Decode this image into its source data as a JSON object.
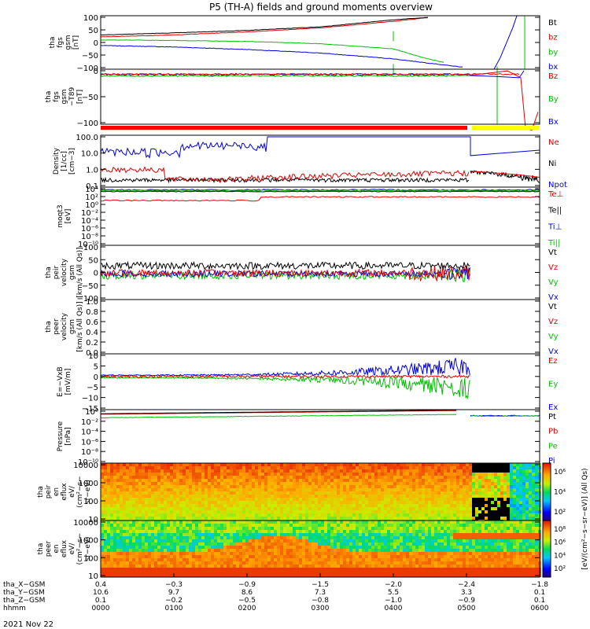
{
  "title": "P5 (TH-A) fields and ground moments overview",
  "date": "2021 Nov 22",
  "colors": {
    "black": "#000000",
    "red": "#e00000",
    "green": "#00c000",
    "blue": "#0000e0",
    "yellow": "#ffff00",
    "bar_red": "#ff0000"
  },
  "panels": [
    {
      "id": "fgs",
      "ylabel": [
        "tha",
        "fgs",
        "gsm",
        "[nT]"
      ],
      "ticks": [
        "100",
        "50",
        "0",
        "−50",
        "−100"
      ],
      "legend": [
        {
          "text": "Bt",
          "color": "#000000"
        },
        {
          "text": "bz",
          "color": "#e00000"
        },
        {
          "text": "by",
          "color": "#00c000"
        },
        {
          "text": "bx",
          "color": "#0000e0"
        }
      ]
    },
    {
      "id": "fgs_t89",
      "ylabel": [
        "tha",
        "fgs",
        "gsm",
        "−T89",
        "[nT]"
      ],
      "ticks": [
        "0",
        "−50",
        "−100"
      ],
      "legend": [
        {
          "text": "Bz",
          "color": "#e00000"
        },
        {
          "text": "By",
          "color": "#00c000"
        },
        {
          "text": "Bx",
          "color": "#0000e0"
        }
      ]
    },
    {
      "id": "density",
      "ylabel": [
        "Density",
        "[1/cc]",
        "[cm−3]"
      ],
      "ticks": [
        "100.0",
        "10.0",
        "1.0",
        "0.1"
      ],
      "legend": [
        {
          "text": "Ne",
          "color": "#e00000"
        },
        {
          "text": "Ni",
          "color": "#000000"
        },
        {
          "text": "Npot",
          "color": "#0000e0"
        }
      ]
    },
    {
      "id": "temp",
      "ylabel": [
        "moqt3",
        "[eV]"
      ],
      "ticks": [
        "10⁴",
        "10²",
        "10⁰",
        "10⁻²",
        "10⁻⁴",
        "10⁻⁶",
        "10⁻⁸",
        "10⁻¹⁰"
      ],
      "legend": [
        {
          "text": "Te⊥",
          "color": "#e00000"
        },
        {
          "text": "Te||",
          "color": "#000000"
        },
        {
          "text": "Ti⊥",
          "color": "#0000e0"
        },
        {
          "text": "Ti||",
          "color": "#00c000"
        }
      ]
    },
    {
      "id": "peir_vel",
      "ylabel": [
        "tha",
        "peir",
        "velocity",
        "gsm",
        "[km/s (All Qs)]"
      ],
      "ticks": [
        "100",
        "50",
        "0",
        "−50",
        "−100"
      ],
      "legend": [
        {
          "text": "Vt",
          "color": "#000000"
        },
        {
          "text": "Vz",
          "color": "#e00000"
        },
        {
          "text": "Vy",
          "color": "#00c000"
        },
        {
          "text": "Vx",
          "color": "#0000e0"
        }
      ]
    },
    {
      "id": "peer_vel",
      "ylabel": [
        "tha",
        "peer",
        "velocity",
        "gsm",
        "[km/s (All Qs)]"
      ],
      "ticks": [
        "1.0",
        "0.8",
        "0.6",
        "0.4",
        "0.2",
        "0.0"
      ],
      "legend": [
        {
          "text": "Vt",
          "color": "#000000"
        },
        {
          "text": "Vz",
          "color": "#e00000"
        },
        {
          "text": "Vy",
          "color": "#00c000"
        },
        {
          "text": "Vx",
          "color": "#0000e0"
        }
      ]
    },
    {
      "id": "efield",
      "ylabel": [
        "E=−VxB",
        "[mV/m]"
      ],
      "ticks": [
        "10",
        "5",
        "0",
        "−5",
        "−10",
        "−15"
      ],
      "legend": [
        {
          "text": "Ez",
          "color": "#e00000"
        },
        {
          "text": "Ey",
          "color": "#00c000"
        },
        {
          "text": "Ex",
          "color": "#0000e0"
        }
      ]
    },
    {
      "id": "pressure",
      "ylabel": [
        "Pressure",
        "[nPa]"
      ],
      "ticks": [
        "10⁰",
        "10⁻²",
        "10⁻⁴",
        "10⁻⁶",
        "10⁻⁸",
        "10⁻¹⁰"
      ],
      "legend": [
        {
          "text": "Pt",
          "color": "#000000"
        },
        {
          "text": "Pb",
          "color": "#e00000"
        },
        {
          "text": "Pe",
          "color": "#00c000"
        },
        {
          "text": "Pi",
          "color": "#0000e0"
        }
      ]
    },
    {
      "id": "peir_spec",
      "ylabel": [
        "tha",
        "peir",
        "en",
        "eflux",
        "eV/",
        "(cm²−s−",
        "sr−eV)"
      ],
      "ticks": [
        "10000",
        "1000",
        "100",
        "10"
      ],
      "legend": []
    },
    {
      "id": "peer_spec",
      "ylabel": [
        "tha",
        "peer",
        "en",
        "eflux",
        "eV/",
        "(cm²−s−",
        "sr−eV)"
      ],
      "ticks": [
        "10000",
        "1000",
        "100",
        "10"
      ],
      "legend": []
    }
  ],
  "colorbar": {
    "label": "[eV/(cm²−s−sr−eV)] (All Qs)",
    "ticks_top": [
      "10⁶",
      "10⁴",
      "10²"
    ],
    "ticks_bottom": [
      "10⁸",
      "10⁶",
      "10⁴",
      "10²"
    ]
  },
  "xaxis": {
    "row_labels": [
      "tha_X−GSM",
      "tha_Y−GSM",
      "tha_Z−GSM",
      "hhmm"
    ],
    "columns": [
      {
        "x": "0.4",
        "y": "10.6",
        "z": "0.1",
        "t": "0000"
      },
      {
        "x": "−0.3",
        "y": "9.7",
        "z": "−0.2",
        "t": "0100"
      },
      {
        "x": "−0.9",
        "y": "8.6",
        "z": "−0.5",
        "t": "0200"
      },
      {
        "x": "−1.5",
        "y": "7.3",
        "z": "−0.8",
        "t": "0300"
      },
      {
        "x": "−2.0",
        "y": "5.5",
        "z": "−1.0",
        "t": "0400"
      },
      {
        "x": "−2.4",
        "y": "3.3",
        "z": "−0.9",
        "t": "0500"
      },
      {
        "x": "−1.8",
        "y": "0.1",
        "z": "0.1",
        "t": "0600"
      }
    ]
  },
  "chart_data": {
    "type": "line",
    "title": "P5 (TH-A) fields and ground moments overview",
    "x_unit": "hhmm",
    "x_range": [
      "0000",
      "0600"
    ],
    "series_approx": {
      "Bt": [
        {
          "t": "0000",
          "v": 30
        },
        {
          "t": "0100",
          "v": 38
        },
        {
          "t": "0200",
          "v": 48
        },
        {
          "t": "0300",
          "v": 62
        },
        {
          "t": "0400",
          "v": 90
        },
        {
          "t": "0430",
          "v": 100
        }
      ],
      "bz": [
        {
          "t": "0000",
          "v": 22
        },
        {
          "t": "0100",
          "v": 30
        },
        {
          "t": "0200",
          "v": 42
        },
        {
          "t": "0300",
          "v": 58
        },
        {
          "t": "0400",
          "v": 84
        },
        {
          "t": "0430",
          "v": 100
        }
      ],
      "by": [
        {
          "t": "0000",
          "v": 10
        },
        {
          "t": "0100",
          "v": 8
        },
        {
          "t": "0200",
          "v": 4
        },
        {
          "t": "0300",
          "v": -5
        },
        {
          "t": "0400",
          "v": -25
        },
        {
          "t": "0440",
          "v": -60
        },
        {
          "t": "0500",
          "v": -100
        }
      ],
      "bx": [
        {
          "t": "0000",
          "v": -12
        },
        {
          "t": "0100",
          "v": -18
        },
        {
          "t": "0200",
          "v": -28
        },
        {
          "t": "0300",
          "v": -42
        },
        {
          "t": "0400",
          "v": -65
        },
        {
          "t": "0500",
          "v": -100
        }
      ],
      "Ni": [
        {
          "t": "0000",
          "v": 0.2
        },
        {
          "t": "0200",
          "v": 0.3
        },
        {
          "t": "0400",
          "v": 0.5
        },
        {
          "t": "0500",
          "v": 0.8
        },
        {
          "t": "0600",
          "v": 0.2
        }
      ],
      "Ne": [
        {
          "t": "0000",
          "v": 0.3
        },
        {
          "t": "0100",
          "v": 0.9
        },
        {
          "t": "0200",
          "v": 0.2
        },
        {
          "t": "0400",
          "v": 0.3
        },
        {
          "t": "0500",
          "v": 0.6
        },
        {
          "t": "0530",
          "v": 0.8
        },
        {
          "t": "0600",
          "v": 0.2
        }
      ]
    }
  }
}
